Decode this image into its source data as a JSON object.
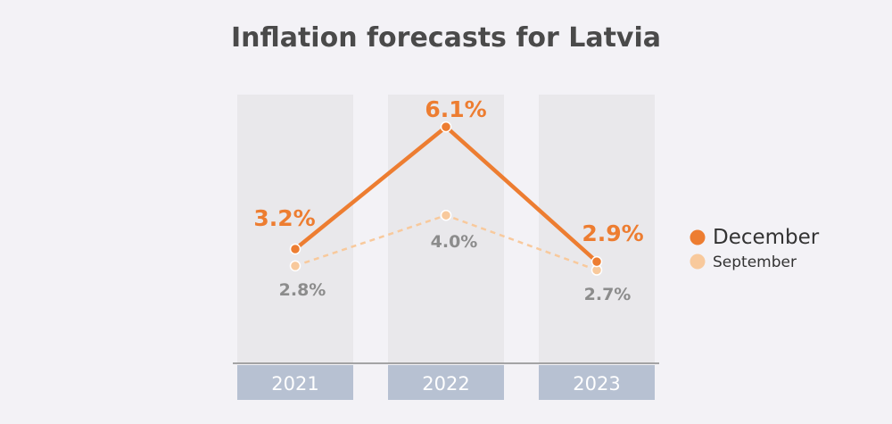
{
  "colors": {
    "december": "#ed7d31",
    "september": "#f8c99c",
    "column_bg": "#e9e8eb",
    "year_box": "#b7c1d2",
    "axis": "#8a8a8a"
  },
  "chart_data": {
    "type": "line",
    "title": "Inflation forecasts for Latvia",
    "categories": [
      "2021",
      "2022",
      "2023"
    ],
    "ylim": [
      0,
      8
    ],
    "xlabel": "",
    "ylabel": "",
    "grid": false,
    "legend_position": "right",
    "series": [
      {
        "name": "December",
        "values": [
          3.2,
          6.1,
          2.9
        ],
        "labels": [
          "3.2%",
          "6.1%",
          "2.9%"
        ],
        "style": "solid"
      },
      {
        "name": "September",
        "values": [
          2.8,
          4.0,
          2.7
        ],
        "labels": [
          "2.8%",
          "4.0%",
          "2.7%"
        ],
        "style": "dashed"
      }
    ]
  }
}
